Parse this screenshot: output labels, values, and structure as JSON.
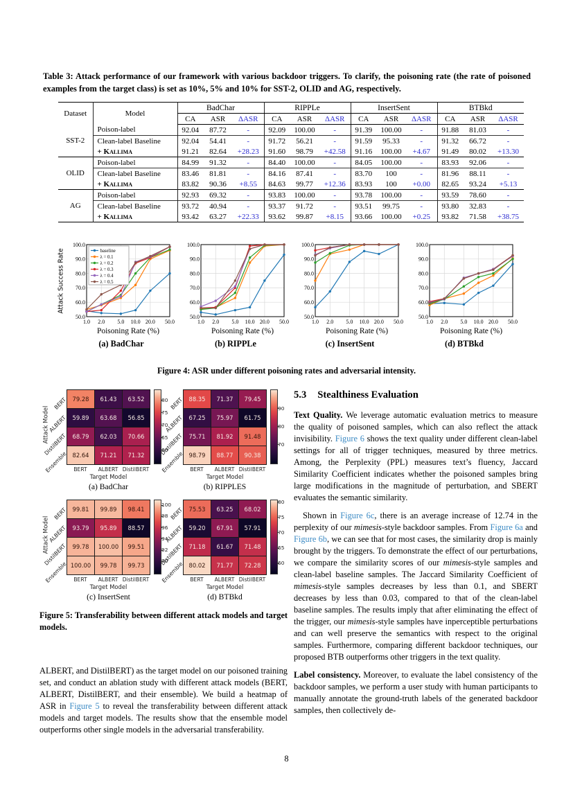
{
  "page": {
    "number": "8"
  },
  "table3": {
    "caption": "Table 3: Attack performance of our framework with various backdoor triggers.  To clarify, the poisoning rate (the rate of poisoned examples from the target class) is set as 10%, 5% and 10% for SST-2, OLID and AG, respectively.",
    "dataset_header": "Dataset",
    "model_header": "Model",
    "col_groups": [
      "BadChar",
      "RIPPLe",
      "InsertSent",
      "BTBkd"
    ],
    "sub_headers": [
      "CA",
      "ASR",
      "ΔASR"
    ],
    "groups": [
      {
        "dataset": "SST-2",
        "rows": [
          {
            "model": "Poison-label",
            "kallima": false,
            "values": [
              "92.04",
              "87.72",
              "-",
              "92.09",
              "100.00",
              "-",
              "91.39",
              "100.00",
              "-",
              "91.88",
              "81.03",
              "-"
            ]
          },
          {
            "model": "Clean-label Baseline",
            "kallima": false,
            "values": [
              "92.04",
              "54.41",
              "-",
              "91.72",
              "56.21",
              "-",
              "91.59",
              "95.33",
              "-",
              "91.32",
              "66.72",
              "-"
            ]
          },
          {
            "model": "+ Kallima",
            "kallima": true,
            "values": [
              "91.21",
              "82.64",
              "+28.23",
              "91.60",
              "98.79",
              "+42.58",
              "91.16",
              "100.00",
              "+4.67",
              "91.49",
              "80.02",
              "+13.30"
            ]
          }
        ]
      },
      {
        "dataset": "OLID",
        "rows": [
          {
            "model": "Poison-label",
            "kallima": false,
            "values": [
              "84.99",
              "91.32",
              "-",
              "84.40",
              "100.00",
              "-",
              "84.05",
              "100.00",
              "-",
              "83.93",
              "92.06",
              "-"
            ]
          },
          {
            "model": "Clean-label Baseline",
            "kallima": false,
            "values": [
              "83.46",
              "81.81",
              "-",
              "84.16",
              "87.41",
              "-",
              "83.70",
              "100",
              "-",
              "81.96",
              "88.11",
              "-"
            ]
          },
          {
            "model": "+ Kallima",
            "kallima": true,
            "values": [
              "83.82",
              "90.36",
              "+8.55",
              "84.63",
              "99.77",
              "+12.36",
              "83.93",
              "100",
              "+0.00",
              "82.65",
              "93.24",
              "+5.13"
            ]
          }
        ]
      },
      {
        "dataset": "AG",
        "rows": [
          {
            "model": "Poison-label",
            "kallima": false,
            "values": [
              "92.93",
              "69.32",
              "-",
              "93.83",
              "100.00",
              "-",
              "93.78",
              "100.00",
              "-",
              "93.59",
              "78.60",
              "-"
            ]
          },
          {
            "model": "Clean-label Baseline",
            "kallima": false,
            "values": [
              "93.72",
              "40.94",
              "-",
              "93.37",
              "91.72",
              "-",
              "93.51",
              "99.75",
              "-",
              "93.80",
              "32.83",
              "-"
            ]
          },
          {
            "model": "+ Kallima",
            "kallima": true,
            "values": [
              "93.42",
              "63.27",
              "+22.33",
              "93.62",
              "99.87",
              "+8.15",
              "93.66",
              "100.00",
              "+0.25",
              "93.82",
              "71.58",
              "+38.75"
            ]
          }
        ]
      }
    ]
  },
  "figure4": {
    "caption": "Figure 4: ASR under different poisoning rates and adversarial intensity.",
    "type": "line",
    "ylabel": "Attack Success Rate",
    "xlabel": "Poisoning Rate (%)",
    "x": [
      1.0,
      2.0,
      5.0,
      10.0,
      20.0,
      50.0
    ],
    "x_ticks": [
      "1.0",
      "2.0",
      "5.0",
      "10.0",
      "20.0",
      "50.0"
    ],
    "y_ticks": [
      "100.0",
      "90.0",
      "80.0",
      "70.0",
      "60.0",
      "50.0"
    ],
    "ylim": [
      50,
      100
    ],
    "legend": [
      "baseline",
      "λ = 0.1",
      "λ = 0.2",
      "λ = 0.3",
      "λ = 0.4",
      "λ = 0.5"
    ],
    "series_colors": [
      "#1f77b4",
      "#ff7f0e",
      "#2ca02c",
      "#d62728",
      "#9467bd",
      "#8c564b"
    ],
    "charts": [
      {
        "label": "(a) BadChar",
        "series": [
          [
            54,
            52.5,
            52,
            54.5,
            68,
            80
          ],
          [
            55,
            58,
            63,
            72,
            90,
            96
          ],
          [
            53.5,
            58.5,
            65,
            80,
            91,
            96.5
          ],
          [
            53.5,
            54.5,
            68,
            87,
            91,
            98.5
          ],
          [
            53.5,
            58.5,
            64,
            88,
            91.5,
            98.5
          ],
          [
            55,
            65.5,
            72,
            87.5,
            92,
            98.5
          ]
        ]
      },
      {
        "label": "(b) RIPPLe",
        "series": [
          [
            53,
            51.5,
            54.5,
            56.5,
            75,
            93
          ],
          [
            55.5,
            56.5,
            63,
            87.5,
            99,
            100
          ],
          [
            55,
            56,
            66.5,
            91,
            99.5,
            100
          ],
          [
            56,
            56.5,
            70,
            99,
            100,
            100
          ],
          [
            57,
            61,
            71,
            97,
            100,
            100
          ],
          [
            56,
            56,
            75,
            97,
            100,
            100
          ]
        ]
      },
      {
        "label": "(c) InsertSent",
        "series": [
          [
            56.5,
            67.5,
            88,
            95.5,
            93.5,
            100
          ],
          [
            75,
            93.5,
            96.5,
            100,
            100,
            100
          ],
          [
            87.5,
            94,
            99.5,
            100,
            100,
            100
          ],
          [
            96,
            98,
            100,
            100,
            100,
            100
          ],
          [
            93,
            97.5,
            100,
            100,
            100,
            100
          ],
          [
            92.5,
            98,
            100,
            100,
            100,
            100
          ]
        ]
      },
      {
        "label": "(d) BTBkd",
        "series": [
          [
            59,
            59.5,
            58.5,
            66.5,
            71.5,
            86.5
          ],
          [
            58,
            62.5,
            66,
            73.5,
            78.5,
            90.5
          ],
          [
            59,
            62,
            71,
            77.5,
            80,
            90
          ],
          [
            60.5,
            62.5,
            76.5,
            80,
            83,
            92.5
          ],
          [
            60,
            62,
            77,
            80,
            83,
            92
          ],
          [
            59.5,
            62.5,
            76.5,
            80,
            82.5,
            92.5
          ]
        ]
      }
    ]
  },
  "figure5": {
    "caption": "Figure 5: Transferability between different attack models and target models.",
    "type": "heatmap",
    "attack_label": "Attack Model",
    "target_label": "Target Model",
    "row_labels": [
      "BERT",
      "ALBERT",
      "DistilBERT",
      "Ensemble"
    ],
    "col_labels": [
      "BERT",
      "ALBERT",
      "DistilBERT"
    ],
    "heatmaps": [
      {
        "label": "(a) BadChar",
        "vmin": 55,
        "vmax": 84,
        "cbar_ticks": [
          80,
          75,
          70,
          65,
          60
        ],
        "values": [
          [
            79.28,
            61.43,
            63.52
          ],
          [
            59.89,
            63.68,
            56.85
          ],
          [
            68.79,
            62.03,
            70.66
          ],
          [
            82.64,
            71.21,
            71.32
          ]
        ]
      },
      {
        "label": "(b) RIPPLES",
        "vmin": 60,
        "vmax": 100,
        "cbar_ticks": [
          90,
          80,
          70
        ],
        "values": [
          [
            88.35,
            71.37,
            79.45
          ],
          [
            67.25,
            75.97,
            61.75
          ],
          [
            75.71,
            81.92,
            91.48
          ],
          [
            98.79,
            88.77,
            90.38
          ]
        ]
      },
      {
        "label": "(c) InsertSent",
        "vmin": 88,
        "vmax": 100.8,
        "cbar_ticks": [
          100,
          98,
          96,
          94,
          92,
          90
        ],
        "values": [
          [
            99.81,
            99.89,
            98.41
          ],
          [
            93.79,
            95.89,
            88.57
          ],
          [
            99.78,
            100.0,
            99.51
          ],
          [
            100.0,
            99.78,
            99.73
          ]
        ]
      },
      {
        "label": "(d) BTBkd",
        "vmin": 57,
        "vmax": 80.5,
        "cbar_ticks": [
          80,
          75,
          70,
          65,
          60
        ],
        "values": [
          [
            75.53,
            63.25,
            68.02
          ],
          [
            59.2,
            67.91,
            57.91
          ],
          [
            71.18,
            61.67,
            71.48
          ],
          [
            80.02,
            71.77,
            72.28
          ]
        ]
      }
    ]
  },
  "left_column": {
    "paragraph": [
      {
        "t": "ALBERT, and DistilBERT) as the target model on our poisoned training set, and conduct an ablation study with different attack models (BERT, ALBERT, DistilBERT, and their ensemble). We build a heatmap of ASR in ",
        "s": ""
      },
      {
        "t": "Figure 5",
        "s": "l"
      },
      {
        "t": " to reveal the transferability between different attack models and target models.  The results show that the ensemble model outperforms other single models in the adversarial transferability.",
        "s": ""
      }
    ]
  },
  "right_column": {
    "section_number": "5.3",
    "section_title": "Stealthiness Evaluation",
    "p1": [
      {
        "t": "Text Quality.",
        "s": "b"
      },
      {
        "t": "  We leverage automatic evaluation metrics to measure the quality of poisoned samples, which can also reflect the attack invisibility.  ",
        "s": ""
      },
      {
        "t": "Figure 6",
        "s": "l"
      },
      {
        "t": " shows the text quality under different clean-label settings for all of trigger techniques, measured by three metrics.  Among, the Perplexity (PPL) measures text’s fluency, Jaccard Similarity Coefficient indicates whether the poisoned samples bring large modifications in the magnitude of perturbation, and SBERT evaluates the semantic similarity.",
        "s": ""
      }
    ],
    "p2": [
      {
        "t": "Shown in ",
        "s": ""
      },
      {
        "t": "Figure 6c",
        "s": "l"
      },
      {
        "t": ", there is an average increase of 12.74 in the perplexity of our ",
        "s": ""
      },
      {
        "t": "mimesis",
        "s": "i"
      },
      {
        "t": "-style backdoor samples. From ",
        "s": ""
      },
      {
        "t": "Figure 6a",
        "s": "l"
      },
      {
        "t": " and ",
        "s": ""
      },
      {
        "t": "Figure 6b",
        "s": "l"
      },
      {
        "t": ", we can see that for most cases, the similarity drop is mainly brought by the triggers. To demonstrate the effect of our perturbations, we compare the similarity scores of our ",
        "s": ""
      },
      {
        "t": "mimesis",
        "s": "i"
      },
      {
        "t": "-style samples and clean-label baseline samples.  The Jaccard Similarity Coefficient of ",
        "s": ""
      },
      {
        "t": "mimesis",
        "s": "i"
      },
      {
        "t": "-style samples decreases by less than 0.1, and SBERT decreases by less than 0.03, compared to that of the clean-label baseline samples.  The results imply that after eliminating the effect of the trigger, our ",
        "s": ""
      },
      {
        "t": "mimesis",
        "s": "i"
      },
      {
        "t": "-style samples have inperceptible perturbations and can well preserve the semantics with respect to the original samples.  Furthermore, comparing different backdoor techniques, our proposed BTB outperforms other triggers in the text quality.",
        "s": ""
      }
    ],
    "p3": [
      {
        "t": "Label consistency.",
        "s": "b"
      },
      {
        "t": "  Moreover, to evaluate the label consistency of the backdoor samples, we perform a user study with human participants to manually annotate the ground-truth labels of the generated backdoor samples, then collectively de-",
        "s": ""
      }
    ]
  }
}
